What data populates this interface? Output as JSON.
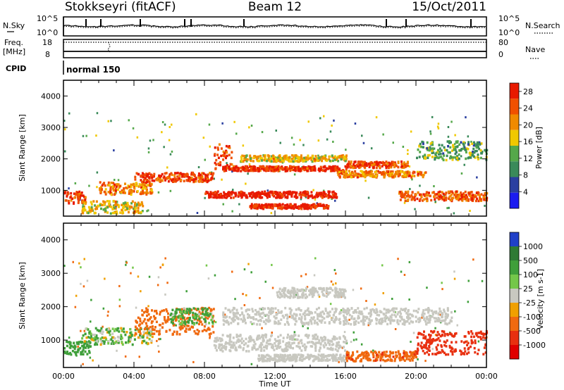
{
  "header": {
    "station": "Stokkseyri (fitACF)",
    "beam": "Beam 12",
    "date": "15/Oct/2011"
  },
  "sky_panel": {
    "left_label": "N.Sky",
    "right_label": "N.Search",
    "left_ticks": [
      "10^5",
      "10^0"
    ],
    "right_ticks": [
      "10^5",
      "10^0"
    ]
  },
  "freq_panel": {
    "left_label_line1": "Freq.",
    "left_label_line2": "[MHz]",
    "right_label": "Nave",
    "left_ticks": [
      "18",
      "8"
    ],
    "right_ticks": [
      "80",
      "0"
    ]
  },
  "cpid": {
    "label": "CPID",
    "value": "normal 150"
  },
  "colors": {
    "power_scale": [
      "#1c1cf0",
      "#2a3fa0",
      "#3a8a5a",
      "#55a84a",
      "#f0c800",
      "#f08a00",
      "#f05000",
      "#e81a00"
    ],
    "velocity_scale": [
      "#2040c8",
      "#2f7a34",
      "#3f9f3a",
      "#74c74a",
      "#c8c8c0",
      "#f0a000",
      "#f06a10",
      "#e83010",
      "#e00000"
    ]
  },
  "chart_data": [
    {
      "type": "heatmap",
      "title": "",
      "xlabel": "",
      "ylabel": "Slant Range [km]",
      "xlim": [
        "00:00",
        "00:00"
      ],
      "ylim": [
        180,
        4500
      ],
      "yticks": [
        "1000",
        "2000",
        "3000",
        "4000"
      ],
      "colorbar": {
        "label": "Power [dB]",
        "ticks": [
          "4",
          "8",
          "12",
          "16",
          "20",
          "24",
          "28"
        ],
        "range": [
          0,
          30
        ]
      },
      "bands": [
        {
          "start_h": 0.0,
          "end_h": 1.2,
          "range_low": 600,
          "range_high": 1000,
          "power_db": 26
        },
        {
          "start_h": 1.0,
          "end_h": 4.5,
          "range_low": 300,
          "range_high": 700,
          "power_db": 18
        },
        {
          "start_h": 2.0,
          "end_h": 5.0,
          "range_low": 900,
          "range_high": 1300,
          "power_db": 22
        },
        {
          "start_h": 4.0,
          "end_h": 8.5,
          "range_low": 1300,
          "range_high": 1600,
          "power_db": 26
        },
        {
          "start_h": 8.5,
          "end_h": 9.5,
          "range_low": 1700,
          "range_high": 2500,
          "power_db": 25
        },
        {
          "start_h": 8.0,
          "end_h": 15.5,
          "range_low": 800,
          "range_high": 1000,
          "power_db": 30
        },
        {
          "start_h": 9.0,
          "end_h": 16.0,
          "range_low": 1650,
          "range_high": 1800,
          "power_db": 27
        },
        {
          "start_h": 10.0,
          "end_h": 16.0,
          "range_low": 1950,
          "range_high": 2150,
          "power_db": 18
        },
        {
          "start_h": 10.5,
          "end_h": 15.0,
          "range_low": 450,
          "range_high": 600,
          "power_db": 29
        },
        {
          "start_h": 15.5,
          "end_h": 20.5,
          "range_low": 1450,
          "range_high": 1650,
          "power_db": 22
        },
        {
          "start_h": 16.0,
          "end_h": 19.5,
          "range_low": 1750,
          "range_high": 1950,
          "power_db": 26
        },
        {
          "start_h": 19.0,
          "end_h": 24.0,
          "range_low": 700,
          "range_high": 1000,
          "power_db": 24
        },
        {
          "start_h": 20.0,
          "end_h": 24.0,
          "range_low": 2000,
          "range_high": 2600,
          "power_db": 12
        }
      ]
    },
    {
      "type": "heatmap",
      "title": "",
      "xlabel": "Time UT",
      "ylabel": "Slant Range [km]",
      "xlim": [
        "00:00",
        "00:00"
      ],
      "ylim": [
        180,
        4500
      ],
      "xticks": [
        "00:00",
        "04:00",
        "08:00",
        "12:00",
        "16:00",
        "20:00",
        "00:00"
      ],
      "yticks": [
        "1000",
        "2000",
        "3000",
        "4000"
      ],
      "colorbar": {
        "label": "Velocity [m s-1]",
        "ticks": [
          "1000",
          "500",
          "100",
          "25",
          "-25",
          "-100",
          "-500",
          "-1000"
        ],
        "range": [
          -1250,
          1250
        ]
      },
      "bands": [
        {
          "start_h": 0.0,
          "end_h": 1.5,
          "range_low": 600,
          "range_high": 1000,
          "velocity": 250
        },
        {
          "start_h": 1.0,
          "end_h": 5.0,
          "range_low": 900,
          "range_high": 1400,
          "velocity": 60
        },
        {
          "start_h": 4.0,
          "end_h": 8.5,
          "range_low": 1200,
          "range_high": 2000,
          "velocity": -250
        },
        {
          "start_h": 6.0,
          "end_h": 8.5,
          "range_low": 1500,
          "range_high": 2000,
          "velocity": 150
        },
        {
          "start_h": 8.5,
          "end_h": 16.0,
          "range_low": 700,
          "range_high": 1200,
          "velocity": 0
        },
        {
          "start_h": 9.0,
          "end_h": 22.0,
          "range_low": 1500,
          "range_high": 2000,
          "velocity": 0
        },
        {
          "start_h": 12.0,
          "end_h": 16.0,
          "range_low": 2300,
          "range_high": 2600,
          "velocity": 0
        },
        {
          "start_h": 11.0,
          "end_h": 16.0,
          "range_low": 400,
          "range_high": 600,
          "velocity": 0
        },
        {
          "start_h": 16.0,
          "end_h": 20.0,
          "range_low": 400,
          "range_high": 700,
          "velocity": -400
        },
        {
          "start_h": 20.0,
          "end_h": 24.0,
          "range_low": 600,
          "range_high": 1300,
          "velocity": -700
        }
      ]
    }
  ]
}
